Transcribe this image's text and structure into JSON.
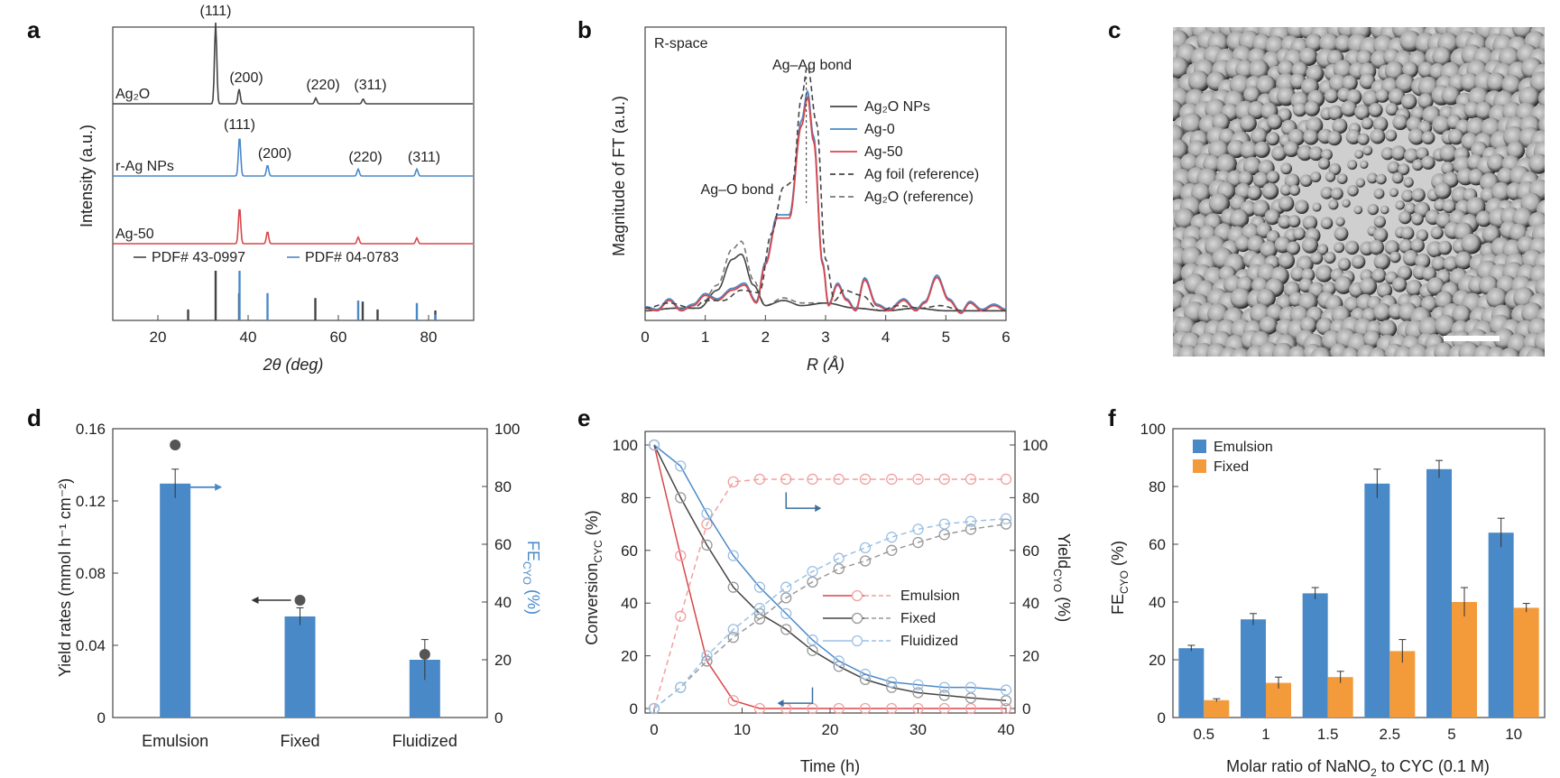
{
  "panel_labels": [
    "a",
    "b",
    "c",
    "d",
    "e",
    "f"
  ],
  "colors": {
    "blue": "#4a89c8",
    "red": "#d9474b",
    "black": "#444444",
    "orange": "#f39a3b",
    "lightred": "#f0a0a0",
    "lightblue": "#9cc0e4",
    "gray": "#777777"
  },
  "chart_data": [
    {
      "id": "a",
      "type": "line",
      "xlabel": "2θ (deg)",
      "ylabel": "Intensity (a.u.)",
      "xlim": [
        10,
        90
      ],
      "xticks": [
        "20",
        "40",
        "60",
        "80"
      ],
      "series": [
        {
          "name": "Ag2O",
          "name_display": "Ag₂O",
          "color": "black",
          "peaks": [
            {
              "x": 32.8,
              "h": 1.0
            },
            {
              "x": 38.0,
              "h": 0.18
            },
            {
              "x": 55.0,
              "h": 0.07
            },
            {
              "x": 65.5,
              "h": 0.06
            }
          ],
          "peak_labels": [
            "(111)",
            "(200)",
            "(220)",
            "(311)"
          ]
        },
        {
          "name": "r-Ag NPs",
          "color": "blue",
          "peaks": [
            {
              "x": 38.1,
              "h": 0.8
            },
            {
              "x": 44.3,
              "h": 0.22
            },
            {
              "x": 64.4,
              "h": 0.14
            },
            {
              "x": 77.4,
              "h": 0.14
            }
          ],
          "peak_labels": [
            "(111)",
            "(200)",
            "(220)",
            "(311)"
          ]
        },
        {
          "name": "Ag-50",
          "color": "red",
          "peaks": [
            {
              "x": 38.1,
              "h": 0.9
            },
            {
              "x": 44.3,
              "h": 0.3
            },
            {
              "x": 64.4,
              "h": 0.16
            },
            {
              "x": 77.4,
              "h": 0.14
            }
          ]
        }
      ],
      "reference_legend": [
        "PDF# 43-0997",
        "PDF# 04-0783"
      ],
      "ref_sticks": [
        {
          "ref": "black",
          "x": [
            26.7,
            32.8,
            38.0,
            54.9,
            65.4,
            68.7,
            81.5
          ],
          "h": [
            0.22,
            1.0,
            0.55,
            0.45,
            0.38,
            0.22,
            0.2
          ]
        },
        {
          "ref": "blue",
          "x": [
            38.1,
            44.3,
            64.4,
            77.4,
            81.5
          ],
          "h": [
            1.0,
            0.55,
            0.4,
            0.35,
            0.12
          ]
        }
      ]
    },
    {
      "id": "b",
      "type": "line",
      "inset_title": "R-space",
      "xlabel": "R (Å)",
      "ylabel": "Magnitude of FT (a.u.)",
      "xlim": [
        0,
        6
      ],
      "xticks": [
        "0",
        "1",
        "2",
        "3",
        "4",
        "5",
        "6"
      ],
      "annotations": [
        "Ag–Ag bond",
        "Ag–O bond"
      ],
      "series": [
        {
          "name": "Ag2O NPs",
          "name_display": "Ag₂O NPs",
          "color": "black",
          "dash": false
        },
        {
          "name": "Ag-0",
          "color": "blue",
          "dash": false
        },
        {
          "name": "Ag-50",
          "color": "red",
          "dash": false
        },
        {
          "name": "Ag foil (reference)",
          "color": "black",
          "dash": true
        },
        {
          "name": "Ag2O (reference)",
          "name_display": "Ag₂O (reference)",
          "color": "gray",
          "dash": true
        }
      ],
      "ag_foil_curve": [
        [
          0,
          0.03
        ],
        [
          0.4,
          0.05
        ],
        [
          0.8,
          0.03
        ],
        [
          1.0,
          0.06
        ],
        [
          1.3,
          0.06
        ],
        [
          1.6,
          0.1
        ],
        [
          1.9,
          0.09
        ],
        [
          2.1,
          0.32
        ],
        [
          2.3,
          0.5
        ],
        [
          2.45,
          0.52
        ],
        [
          2.6,
          0.85
        ],
        [
          2.7,
          0.97
        ],
        [
          2.85,
          0.75
        ],
        [
          3.0,
          0.22
        ],
        [
          3.15,
          0.06
        ],
        [
          3.3,
          0.1
        ],
        [
          3.6,
          0.08
        ],
        [
          3.9,
          0.02
        ],
        [
          4.2,
          0.04
        ],
        [
          4.6,
          0.03
        ],
        [
          4.9,
          0.04
        ],
        [
          5.3,
          0.02
        ],
        [
          6.0,
          0.02
        ]
      ],
      "ag_curve": [
        [
          0,
          0.03
        ],
        [
          0.2,
          0.02
        ],
        [
          0.4,
          0.06
        ],
        [
          0.6,
          0.02
        ],
        [
          0.8,
          0.04
        ],
        [
          1.0,
          0.08
        ],
        [
          1.2,
          0.06
        ],
        [
          1.45,
          0.1
        ],
        [
          1.65,
          0.12
        ],
        [
          1.85,
          0.05
        ],
        [
          2.0,
          0.2
        ],
        [
          2.2,
          0.38
        ],
        [
          2.4,
          0.38
        ],
        [
          2.6,
          0.74
        ],
        [
          2.7,
          0.85
        ],
        [
          2.8,
          0.68
        ],
        [
          2.95,
          0.2
        ],
        [
          3.05,
          0.04
        ],
        [
          3.2,
          0.12
        ],
        [
          3.35,
          0.06
        ],
        [
          3.5,
          0.02
        ],
        [
          3.65,
          0.14
        ],
        [
          3.85,
          0.04
        ],
        [
          4.05,
          0.02
        ],
        [
          4.3,
          0.06
        ],
        [
          4.5,
          0.02
        ],
        [
          4.65,
          0.05
        ],
        [
          4.85,
          0.15
        ],
        [
          5.05,
          0.06
        ],
        [
          5.25,
          0.01
        ],
        [
          5.4,
          0.05
        ],
        [
          5.6,
          0.02
        ],
        [
          5.8,
          0.04
        ],
        [
          6.0,
          0.02
        ]
      ],
      "ag2o_curve": [
        [
          0,
          0.02
        ],
        [
          0.5,
          0.03
        ],
        [
          0.9,
          0.03
        ],
        [
          1.2,
          0.1
        ],
        [
          1.45,
          0.22
        ],
        [
          1.6,
          0.24
        ],
        [
          1.8,
          0.12
        ],
        [
          2.0,
          0.04
        ],
        [
          2.3,
          0.06
        ],
        [
          2.6,
          0.04
        ],
        [
          3.0,
          0.05
        ],
        [
          3.5,
          0.03
        ],
        [
          4.0,
          0.02
        ],
        [
          4.5,
          0.03
        ],
        [
          5.0,
          0.02
        ],
        [
          6.0,
          0.02
        ]
      ],
      "ag2o_ref_curve": [
        [
          0,
          0.02
        ],
        [
          0.5,
          0.03
        ],
        [
          0.9,
          0.03
        ],
        [
          1.2,
          0.12
        ],
        [
          1.45,
          0.26
        ],
        [
          1.6,
          0.29
        ],
        [
          1.8,
          0.14
        ],
        [
          2.0,
          0.04
        ],
        [
          2.3,
          0.07
        ],
        [
          2.6,
          0.05
        ],
        [
          3.0,
          0.05
        ],
        [
          3.5,
          0.03
        ],
        [
          4.0,
          0.02
        ],
        [
          4.5,
          0.03
        ],
        [
          5.0,
          0.02
        ],
        [
          6.0,
          0.02
        ]
      ]
    },
    {
      "id": "d",
      "type": "bar",
      "categories": [
        "Emulsion",
        "Fixed",
        "Fluidized"
      ],
      "fe_values": [
        81,
        35,
        20
      ],
      "fe_err": [
        5,
        3,
        7
      ],
      "yield_values": [
        0.151,
        0.065,
        0.035
      ],
      "ylabel_left": "Yield rates (mmol h⁻¹ cm⁻²)",
      "ylabel_right": "FE",
      "ylabel_right_sub": "CYO",
      "ylabel_right_unit": " (%)",
      "ylim_left": [
        0,
        0.16
      ],
      "ylim_right": [
        0,
        100
      ],
      "yticks_left": [
        "0",
        "0.04",
        "0.08",
        "0.12",
        "0.16"
      ],
      "yticks_right": [
        "0",
        "20",
        "40",
        "60",
        "80",
        "100"
      ]
    },
    {
      "id": "e",
      "type": "line",
      "xlabel": "Time (h)",
      "ylabel_left": "Conversion",
      "ylabel_left_sub": "CYC",
      "ylabel_left_unit": " (%)",
      "ylabel_right": "Yield",
      "ylabel_right_sub": "CYO",
      "ylabel_right_unit": " (%)",
      "xlim": [
        0,
        40
      ],
      "ylim": [
        0,
        100
      ],
      "xticks": [
        "0",
        "10",
        "20",
        "30",
        "40"
      ],
      "yticks": [
        "0",
        "20",
        "40",
        "60",
        "80",
        "100"
      ],
      "legend": [
        "Emulsion",
        "Fixed",
        "Fluidized"
      ],
      "conversion": {
        "Emulsion": {
          "x": [
            0,
            3,
            6,
            9,
            12,
            15,
            18,
            21,
            24,
            27,
            30,
            33,
            36,
            40
          ],
          "y": [
            100,
            58,
            18,
            3,
            0,
            0,
            0,
            0,
            0,
            0,
            0,
            0,
            0,
            0
          ]
        },
        "Fixed": {
          "x": [
            0,
            3,
            6,
            9,
            12,
            15,
            18,
            21,
            24,
            27,
            30,
            33,
            36,
            40
          ],
          "y": [
            100,
            80,
            62,
            46,
            36,
            30,
            22,
            16,
            11,
            8,
            6,
            5,
            4,
            3
          ]
        },
        "Fluidized": {
          "x": [
            0,
            3,
            6,
            9,
            12,
            15,
            18,
            21,
            24,
            27,
            30,
            33,
            36,
            40
          ],
          "y": [
            100,
            92,
            74,
            58,
            46,
            36,
            26,
            18,
            13,
            10,
            9,
            8,
            8,
            7
          ]
        }
      },
      "yield": {
        "Emulsion": {
          "x": [
            0,
            3,
            6,
            9,
            12,
            15,
            18,
            21,
            24,
            27,
            30,
            33,
            36,
            40
          ],
          "y": [
            0,
            35,
            70,
            86,
            87,
            87,
            87,
            87,
            87,
            87,
            87,
            87,
            87,
            87
          ]
        },
        "Fixed": {
          "x": [
            0,
            3,
            6,
            9,
            12,
            15,
            18,
            21,
            24,
            27,
            30,
            33,
            36,
            40
          ],
          "y": [
            0,
            8,
            18,
            27,
            34,
            42,
            48,
            53,
            56,
            60,
            63,
            66,
            68,
            70
          ]
        },
        "Fluidized": {
          "x": [
            0,
            3,
            6,
            9,
            12,
            15,
            18,
            21,
            24,
            27,
            30,
            33,
            36,
            40
          ],
          "y": [
            0,
            8,
            20,
            30,
            38,
            46,
            52,
            57,
            61,
            65,
            68,
            70,
            71,
            72
          ]
        }
      }
    },
    {
      "id": "f",
      "type": "bar",
      "categories": [
        "0.5",
        "1",
        "1.5",
        "2.5",
        "5",
        "10"
      ],
      "xlabel": "Molar ratio of NaNO",
      "xlabel_sub": "2",
      "xlabel_rest": " to CYC (0.1 M)",
      "ylabel": "FE",
      "ylabel_sub": "CYO",
      "ylabel_unit": " (%)",
      "ylim": [
        0,
        100
      ],
      "yticks": [
        "0",
        "20",
        "40",
        "60",
        "80",
        "100"
      ],
      "series": [
        {
          "name": "Emulsion",
          "color": "blue",
          "values": [
            24,
            34,
            43,
            81,
            86,
            64
          ],
          "err": [
            1,
            2,
            2,
            5,
            3,
            5
          ]
        },
        {
          "name": "Fixed",
          "color": "orange",
          "values": [
            6,
            12,
            14,
            23,
            40,
            38
          ],
          "err": [
            0.5,
            2,
            2,
            4,
            5,
            1.5
          ]
        }
      ]
    }
  ]
}
